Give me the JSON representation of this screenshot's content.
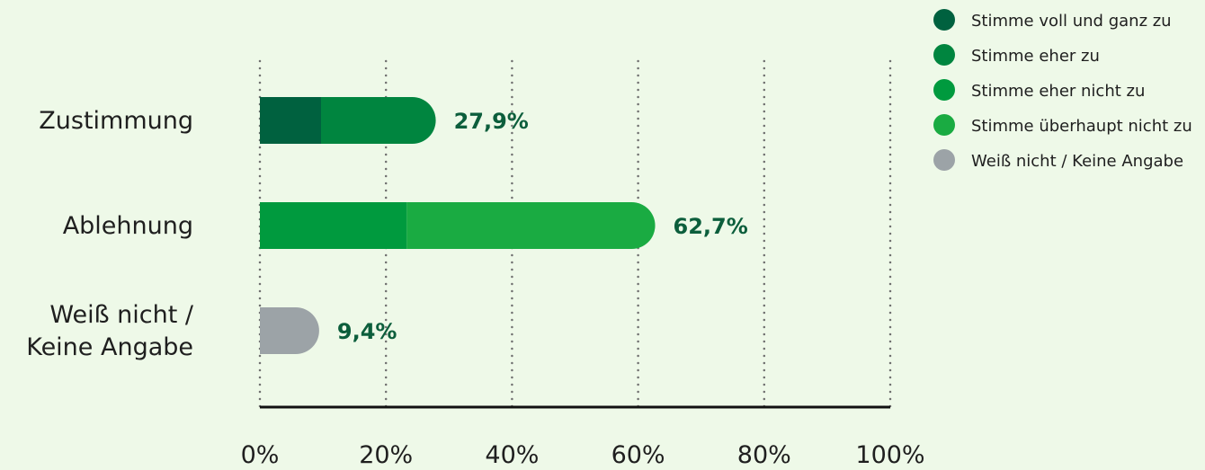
{
  "chart_data": {
    "type": "bar",
    "orientation": "horizontal",
    "stacked": true,
    "categories": [
      "Zustimmung",
      "Ablehnung",
      "Weiß nicht / Keine Angabe"
    ],
    "category_lines": [
      [
        "Zustimmung"
      ],
      [
        "Ablehnung"
      ],
      [
        "Weiß nicht /",
        "Keine Angabe"
      ]
    ],
    "series": [
      {
        "name": "Stimme voll und ganz zu",
        "color": "#00613f",
        "values": [
          9.7,
          0,
          0
        ]
      },
      {
        "name": "Stimme eher zu",
        "color": "#00853f",
        "values": [
          18.2,
          0,
          0
        ]
      },
      {
        "name": "Stimme eher nicht zu",
        "color": "#009a3e",
        "values": [
          0,
          23.3,
          0
        ]
      },
      {
        "name": "Stimme überhaupt nicht zu",
        "color": "#1aab42",
        "values": [
          0,
          39.4,
          0
        ]
      },
      {
        "name": "Weiß nicht / Keine Angabe",
        "color": "#9ca3a7",
        "values": [
          0,
          0,
          9.4
        ]
      }
    ],
    "totals": [
      "27,9%",
      "62,7%",
      "9,4%"
    ],
    "xlim": [
      0,
      100
    ],
    "xticks": [
      0,
      20,
      40,
      60,
      80,
      100
    ],
    "xtick_labels": [
      "0%",
      "20%",
      "40%",
      "60%",
      "80%",
      "100%"
    ],
    "grid": "vertical-dotted",
    "legend_position": "top-right",
    "value_label_color": "#0c5e3c"
  }
}
